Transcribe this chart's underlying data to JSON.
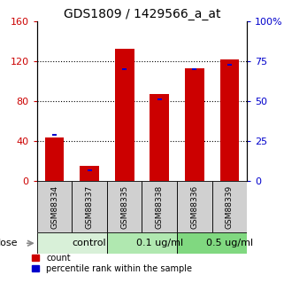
{
  "title": "GDS1809 / 1429566_a_at",
  "samples": [
    "GSM88334",
    "GSM88337",
    "GSM88335",
    "GSM88338",
    "GSM88336",
    "GSM88339"
  ],
  "count_values": [
    44,
    15,
    133,
    87,
    113,
    122
  ],
  "percentile_values": [
    29,
    7,
    70,
    51,
    70,
    73
  ],
  "groups": [
    {
      "label": "control",
      "color": "#d8f0d8",
      "span": [
        0,
        2
      ]
    },
    {
      "label": "0.1 ug/ml",
      "color": "#b0e8b0",
      "span": [
        2,
        4
      ]
    },
    {
      "label": "0.5 ug/ml",
      "color": "#80d880",
      "span": [
        4,
        6
      ]
    }
  ],
  "left_ylim": [
    0,
    160
  ],
  "right_ylim": [
    0,
    100
  ],
  "left_yticks": [
    0,
    40,
    80,
    120,
    160
  ],
  "right_yticks": [
    0,
    25,
    50,
    75,
    100
  ],
  "right_yticklabels": [
    "0",
    "25",
    "50",
    "75",
    "100%"
  ],
  "left_tick_color": "#cc0000",
  "right_tick_color": "#0000cc",
  "bar_color_red": "#cc0000",
  "bar_color_blue": "#0000cc",
  "bar_width": 0.55,
  "sample_box_color": "#d0d0d0",
  "legend_count": "count",
  "legend_percentile": "percentile rank within the sample",
  "title_fontsize": 10,
  "tick_fontsize": 8,
  "sample_fontsize": 6.5,
  "dose_fontsize": 8
}
